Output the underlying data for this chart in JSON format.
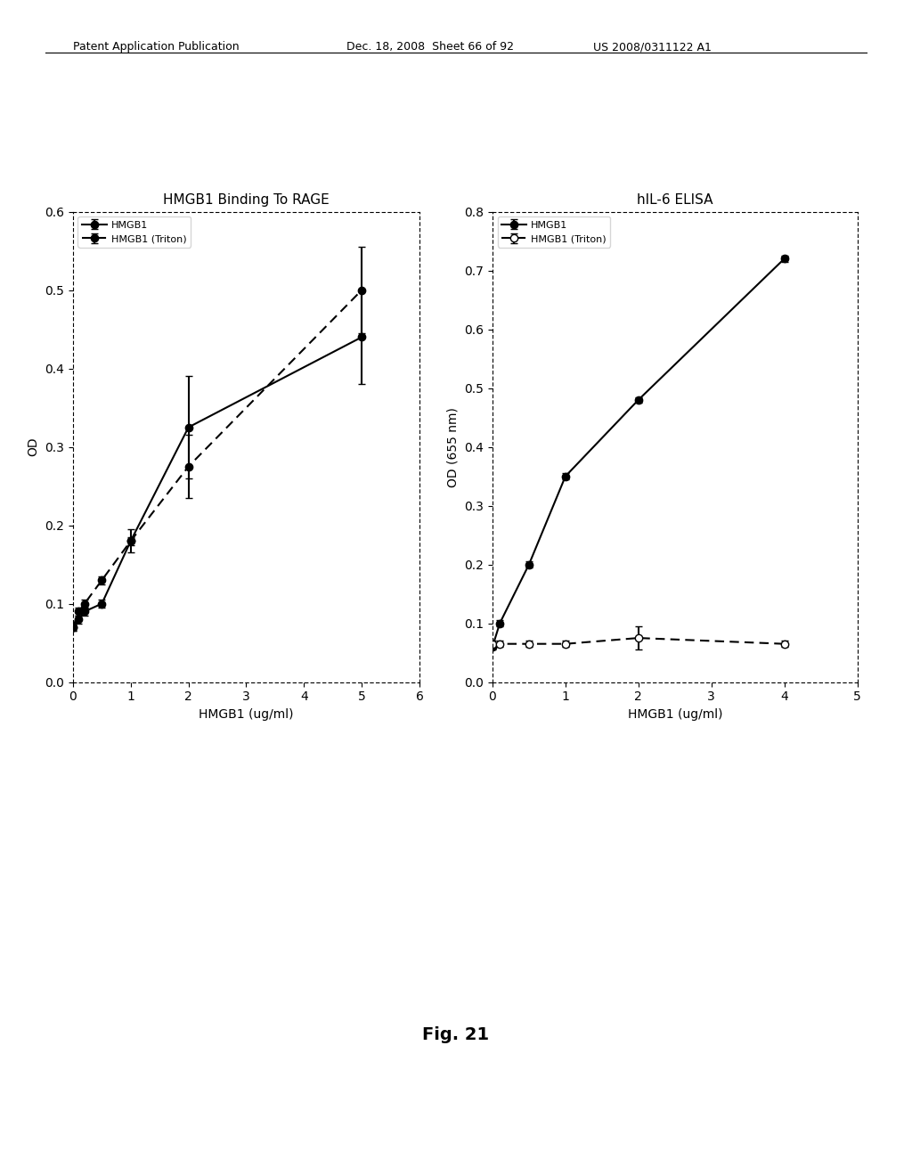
{
  "left_chart": {
    "title": "HMGB1 Binding To RAGE",
    "xlabel": "HMGB1 (ug/ml)",
    "ylabel": "OD",
    "xlim": [
      0,
      6
    ],
    "ylim": [
      0,
      0.6
    ],
    "xticks": [
      0,
      1,
      2,
      3,
      4,
      5,
      6
    ],
    "yticks": [
      0,
      0.1,
      0.2,
      0.3,
      0.4,
      0.5,
      0.6
    ],
    "series1": {
      "label": "HMGB1",
      "x": [
        0,
        0.1,
        0.2,
        0.5,
        1,
        2,
        5
      ],
      "y": [
        0.07,
        0.08,
        0.09,
        0.1,
        0.18,
        0.325,
        0.44
      ],
      "yerr": [
        0.005,
        0.005,
        0.005,
        0.005,
        0.015,
        0.065,
        0.06
      ],
      "linestyle": "solid",
      "marker": "o",
      "markersize": 6,
      "color": "#000000"
    },
    "series2": {
      "label": "HMGB1 (Triton)",
      "x": [
        0,
        0.1,
        0.2,
        0.5,
        1,
        2,
        5
      ],
      "y": [
        0.07,
        0.09,
        0.1,
        0.13,
        0.18,
        0.275,
        0.5
      ],
      "yerr": [
        0.005,
        0.005,
        0.005,
        0.005,
        0.005,
        0.04,
        0.055
      ],
      "linestyle": "dashed",
      "marker": "o",
      "markersize": 6,
      "color": "#000000"
    }
  },
  "right_chart": {
    "title": "hIL-6 ELISA",
    "xlabel": "HMGB1 (ug/ml)",
    "ylabel": "OD (655 nm)",
    "xlim": [
      0,
      5
    ],
    "ylim": [
      0,
      0.8
    ],
    "xticks": [
      0,
      1,
      2,
      3,
      4,
      5
    ],
    "yticks": [
      0,
      0.1,
      0.2,
      0.3,
      0.4,
      0.5,
      0.6,
      0.7,
      0.8
    ],
    "series1": {
      "label": "HMGB1",
      "x": [
        0,
        0.1,
        0.5,
        1,
        2,
        4
      ],
      "y": [
        0.06,
        0.1,
        0.2,
        0.35,
        0.48,
        0.72
      ],
      "yerr": [
        0.005,
        0.005,
        0.005,
        0.005,
        0.005,
        0.005
      ],
      "linestyle": "solid",
      "marker": "o",
      "markersize": 6,
      "color": "#000000"
    },
    "series2": {
      "label": "HMGB1 (Triton)",
      "x": [
        0,
        0.1,
        0.5,
        1,
        2,
        4
      ],
      "y": [
        0.065,
        0.065,
        0.065,
        0.065,
        0.075,
        0.065
      ],
      "yerr": [
        0.005,
        0.005,
        0.005,
        0.005,
        0.02,
        0.005
      ],
      "linestyle": "dashed",
      "marker": "o",
      "markersize": 6,
      "color": "#000000"
    }
  },
  "header_left": "Patent Application Publication",
  "header_middle": "Dec. 18, 2008  Sheet 66 of 92",
  "header_right": "US 2008/0311122 A1",
  "figure_label": "Fig. 21",
  "background_color": "#ffffff",
  "font_color": "#000000"
}
